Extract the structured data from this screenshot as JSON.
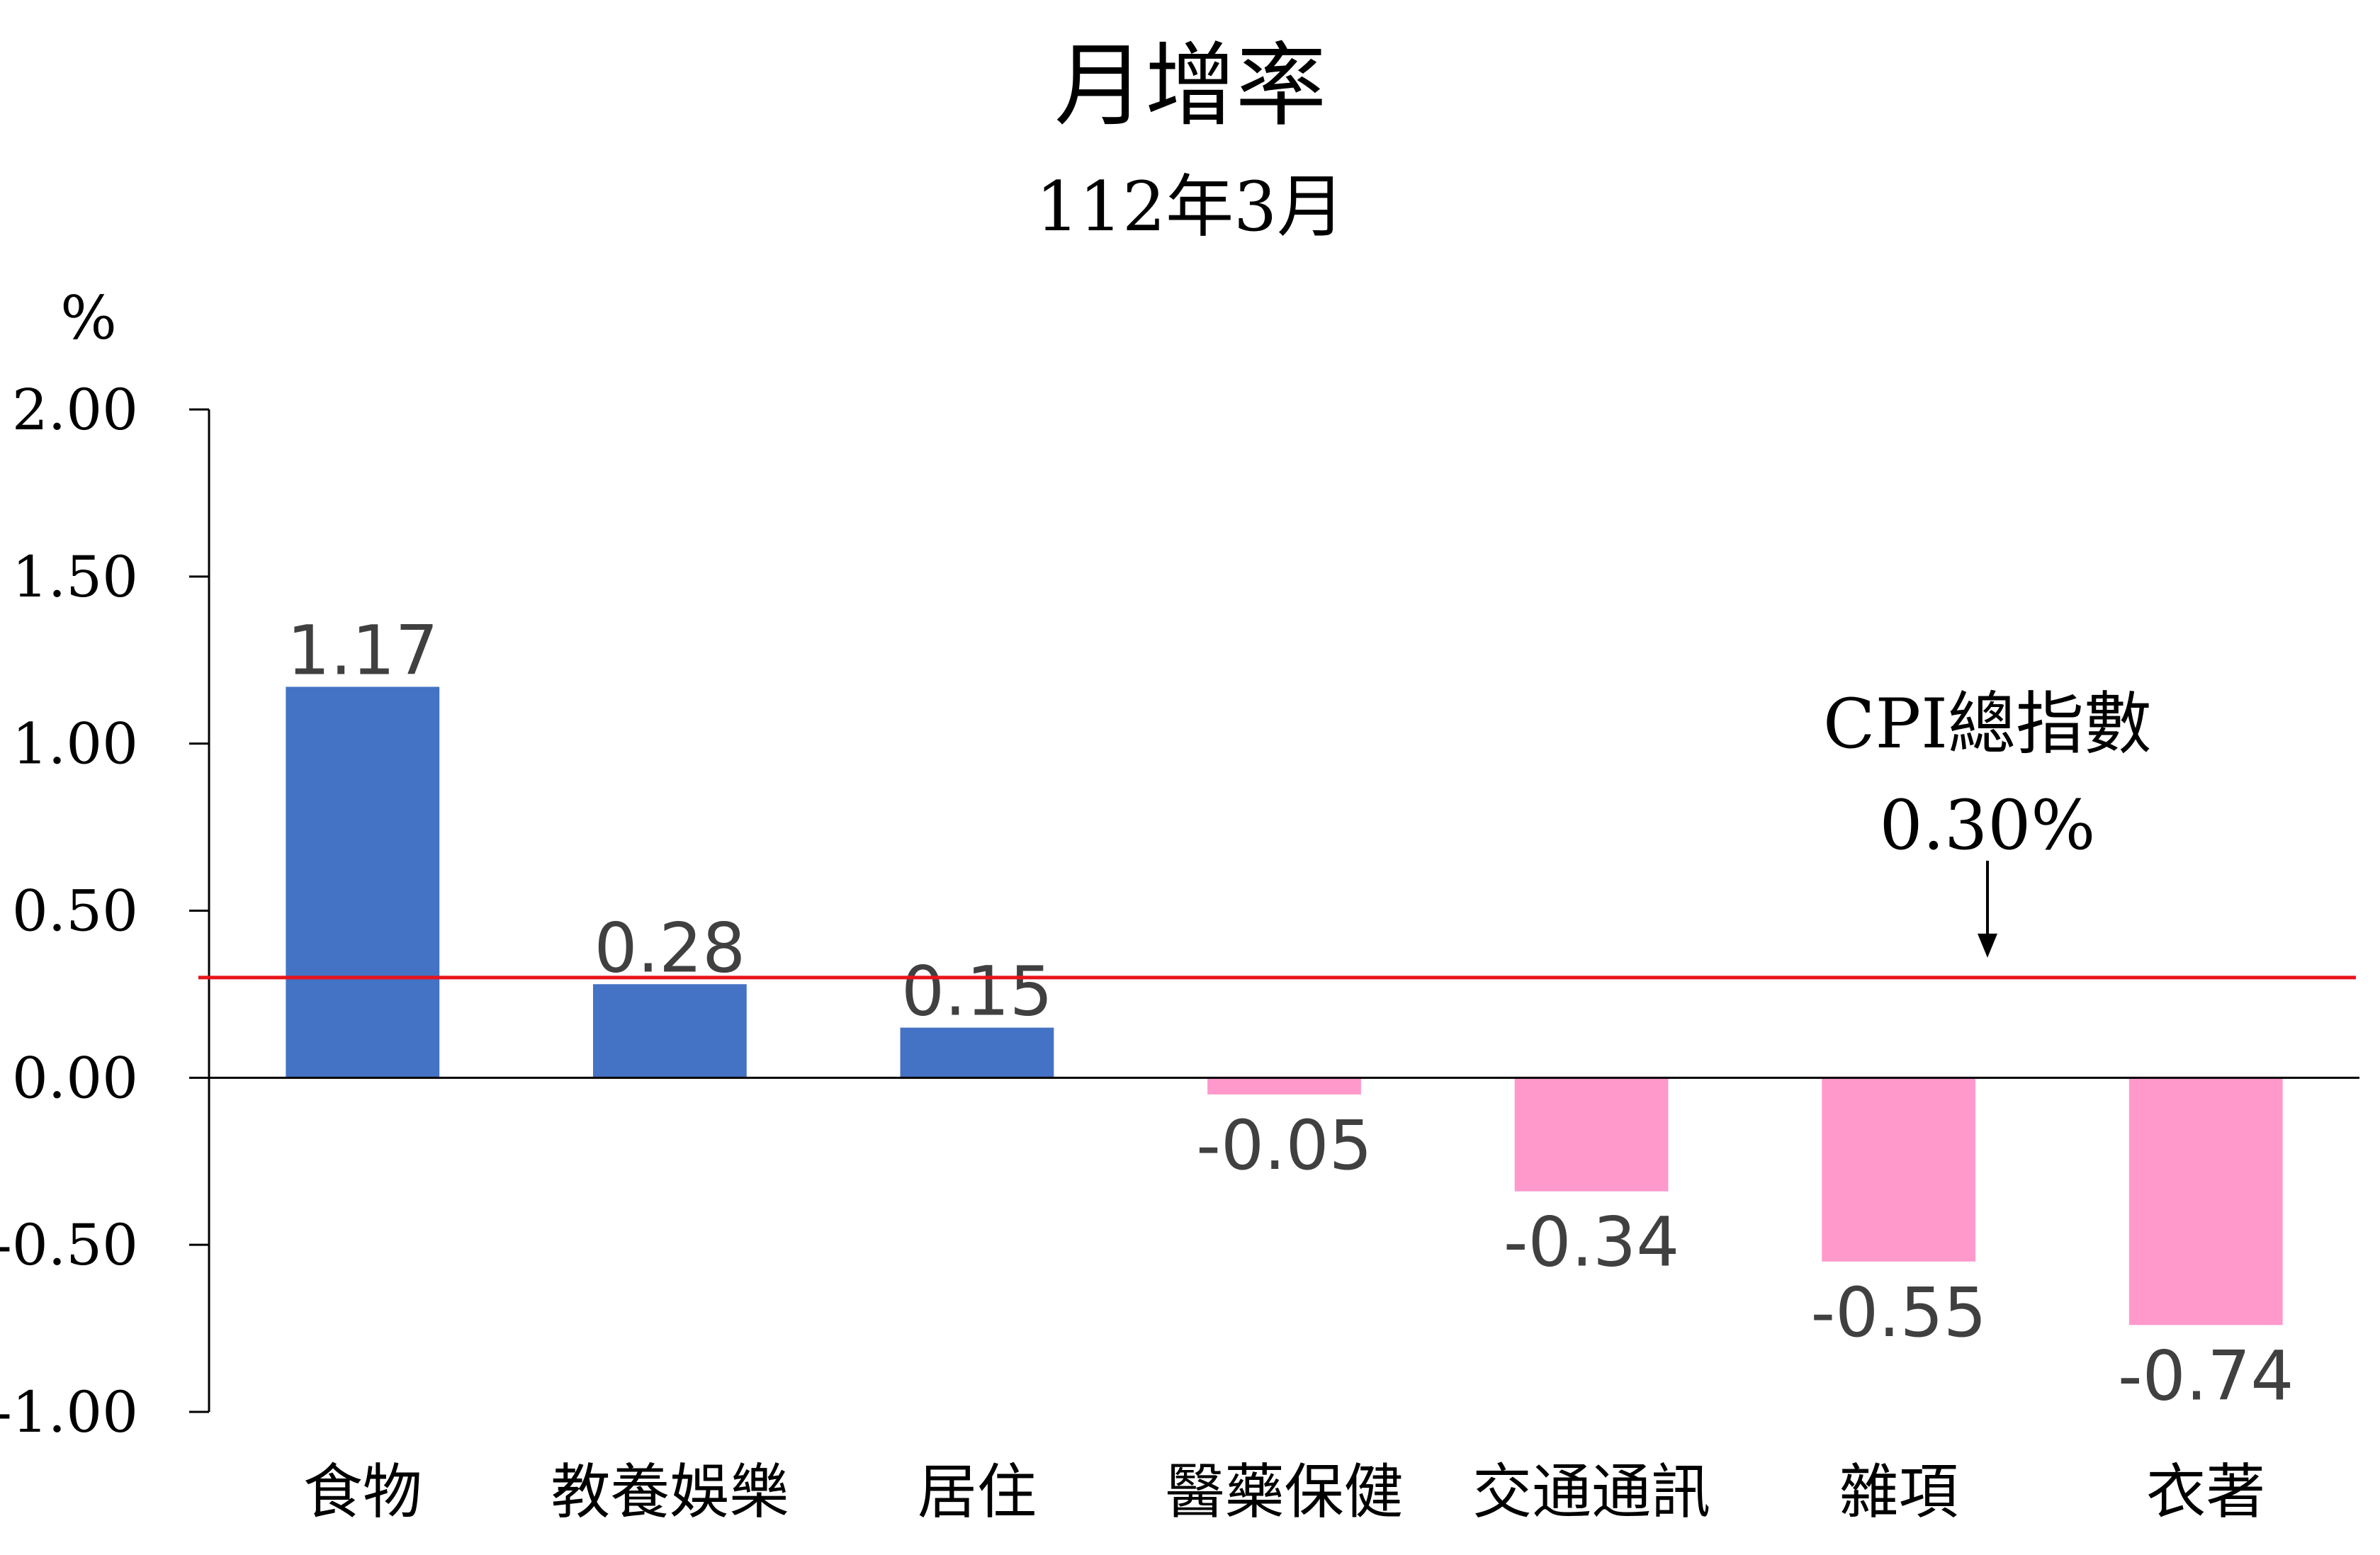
{
  "chart_data": {
    "type": "bar",
    "title": "月增率",
    "subtitle": "112年3月",
    "ylabel": "%",
    "ylim": [
      -1.0,
      2.0
    ],
    "yticks": [
      "2.00",
      "1.50",
      "1.00",
      "0.50",
      "0.00",
      "-0.50",
      "-1.00"
    ],
    "categories": [
      "食物",
      "教養娛樂",
      "居住",
      "醫藥保健",
      "交通通訊",
      "雜項",
      "衣著"
    ],
    "values": [
      1.17,
      0.28,
      0.15,
      -0.05,
      -0.34,
      -0.55,
      -0.74
    ],
    "value_labels": [
      "1.17",
      "0.28",
      "0.15",
      "-0.05",
      "-0.34",
      "-0.55",
      "-0.74"
    ],
    "reference_line": {
      "value": 0.3,
      "label": "CPI總指數",
      "value_label": "0.30%",
      "color": "#e8141b"
    },
    "colors": {
      "positive": "#4472c4",
      "negative": "#ff99cc",
      "axis": "#000000",
      "label": "#404040"
    },
    "grid": false,
    "legend": "none"
  }
}
